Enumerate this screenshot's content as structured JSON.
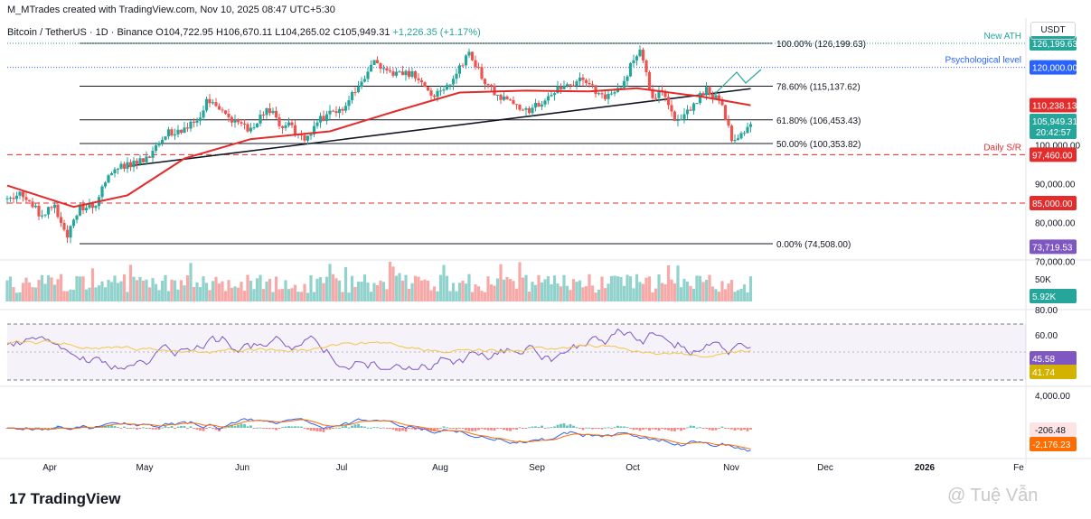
{
  "header": {
    "author_line": "M_MTrades created with TradingView.com, Nov 10, 2025 08:47 UTC+5:30",
    "symbol": "Bitcoin / TetherUS · 1D · Binance",
    "ohlc": {
      "o": "O104,722.95",
      "h": "H106,670.11",
      "l": "L104,265.02",
      "c": "C105,949.31"
    },
    "change": "+1,226.35 (+1.17%)",
    "currency_button": "USDT"
  },
  "branding": {
    "logo": "TradingView",
    "watermark": "@ Tuệ Vẫn"
  },
  "colors": {
    "up": "#26a69a",
    "down": "#ef5350",
    "ema": "#e32c2c",
    "rsi": "#7e57c2",
    "rsi_ma": "#f5c542",
    "macd": "#2962ff",
    "signal": "#ff6d00",
    "blue_level": "#2962ff"
  },
  "chart_data": [
    {
      "type": "candlestick",
      "title": "Bitcoin / TetherUS · 1D · Binance",
      "x_ticks": [
        "Apr",
        "May",
        "Jun",
        "Jul",
        "Aug",
        "Sep",
        "Oct",
        "Nov",
        "Dec",
        "2026",
        "Fe"
      ],
      "y_ticks": [
        "100,000.00",
        "90,000.00",
        "80,000.00",
        "70,000.00"
      ],
      "ylim": [
        70000,
        130000
      ],
      "fib_levels": [
        {
          "label": "100.00% (126,199.63)",
          "value": 126199.63
        },
        {
          "label": "78.60% (115,137.62)",
          "value": 115137.62
        },
        {
          "label": "61.80% (106,453.43)",
          "value": 106453.43
        },
        {
          "label": "50.00% (100,353.82)",
          "value": 100353.82
        },
        {
          "label": "0.00% (74,508.00)",
          "value": 74508.0
        }
      ],
      "levels": [
        {
          "name": "New ATH",
          "price_label": "126,199.63",
          "value": 126199.63,
          "style": "dotted",
          "color": "#26a69a"
        },
        {
          "name": "Psychological level",
          "price_label": "120,000.00",
          "value": 120000.0,
          "style": "dotted",
          "color": "#2962ff"
        },
        {
          "name": "Daily S/R",
          "price_label": "97,460.00",
          "value": 97460.0,
          "style": "dashed",
          "color": "#e32c2c"
        },
        {
          "name": "",
          "price_label": "85,000.00",
          "value": 85000.0,
          "style": "dashed",
          "color": "#e32c2c"
        }
      ],
      "price_badges": [
        {
          "label": "110,238.13",
          "value": 110238.13,
          "color": "#e32c2c"
        },
        {
          "label": "105,949.31",
          "value": 105949.31,
          "color": "#26a69a",
          "sub": "20:42:57"
        },
        {
          "label": "73,719.53",
          "value": 73719.53,
          "color": "#7e57c2"
        }
      ],
      "trendline": {
        "from": {
          "x": "Apr 27, 2025",
          "y": 94500
        },
        "to": {
          "x": "Nov 10, 2025",
          "y": 114500
        }
      },
      "close_path": [
        [
          "Mar 20",
          86000
        ],
        [
          "Mar 25",
          87500
        ],
        [
          "Mar 30",
          82500
        ],
        [
          "Apr 4",
          83500
        ],
        [
          "Apr 8",
          76500
        ],
        [
          "Apr 12",
          84000
        ],
        [
          "Apr 17",
          85000
        ],
        [
          "Apr 22",
          93500
        ],
        [
          "Apr 28",
          95000
        ],
        [
          "May 3",
          96000
        ],
        [
          "May 9",
          103000
        ],
        [
          "May 14",
          104000
        ],
        [
          "May 20",
          106000
        ],
        [
          "May 22",
          111000
        ],
        [
          "May 28",
          108000
        ],
        [
          "Jun 2",
          105000
        ],
        [
          "Jun 6",
          104000
        ],
        [
          "Jun 10",
          110000
        ],
        [
          "Jun 14",
          105500
        ],
        [
          "Jun 18",
          104500
        ],
        [
          "Jun 22",
          101000
        ],
        [
          "Jun 27",
          107000
        ],
        [
          "Jul 3",
          108500
        ],
        [
          "Jul 10",
          116000
        ],
        [
          "Jul 14",
          121000
        ],
        [
          "Jul 20",
          118000
        ],
        [
          "Jul 26",
          118000
        ],
        [
          "Aug 2",
          113000
        ],
        [
          "Aug 8",
          117000
        ],
        [
          "Aug 13",
          123500
        ],
        [
          "Aug 18",
          116000
        ],
        [
          "Aug 25",
          111000
        ],
        [
          "Aug 31",
          108500
        ],
        [
          "Sep 5",
          111000
        ],
        [
          "Sep 12",
          115500
        ],
        [
          "Sep 18",
          117000
        ],
        [
          "Sep 24",
          112000
        ],
        [
          "Sep 30",
          114000
        ],
        [
          "Oct 3",
          121000
        ],
        [
          "Oct 6",
          124800
        ],
        [
          "Oct 10",
          112000
        ],
        [
          "Oct 13",
          115000
        ],
        [
          "Oct 17",
          106500
        ],
        [
          "Oct 21",
          108000
        ],
        [
          "Oct 27",
          114500
        ],
        [
          "Nov 1",
          110000
        ],
        [
          "Nov 4",
          101000
        ],
        [
          "Nov 7",
          102000
        ],
        [
          "Nov 10",
          105949
        ]
      ],
      "ema_path": [
        [
          "Mar 20",
          89500
        ],
        [
          "Apr 10",
          84000
        ],
        [
          "Apr 27",
          87000
        ],
        [
          "May 15",
          96500
        ],
        [
          "Jun 5",
          101500
        ],
        [
          "Jun 30",
          103500
        ],
        [
          "Jul 20",
          108500
        ],
        [
          "Aug 10",
          113500
        ],
        [
          "Aug 31",
          114000
        ],
        [
          "Sep 20",
          113800
        ],
        [
          "Oct 5",
          114600
        ],
        [
          "Oct 25",
          112500
        ],
        [
          "Nov 10",
          110238
        ]
      ]
    },
    {
      "type": "bar",
      "title": "Volume",
      "y_ticks": [
        "50K"
      ],
      "last_value_label": "5.92K"
    },
    {
      "type": "line",
      "title": "RSI",
      "y_ticks": [
        "80.00",
        "60.00"
      ],
      "bands": [
        70,
        30
      ],
      "last_values": [
        {
          "name": "RSI",
          "label": "45.58"
        },
        {
          "name": "RSI MA",
          "label": "41.74"
        }
      ]
    },
    {
      "type": "line",
      "title": "MACD",
      "y_ticks": [
        "4,000.00"
      ],
      "last_values": [
        {
          "name": "Histogram",
          "label": "-206.48"
        },
        {
          "name": "Signal",
          "label": "-2,176.23"
        }
      ]
    }
  ]
}
